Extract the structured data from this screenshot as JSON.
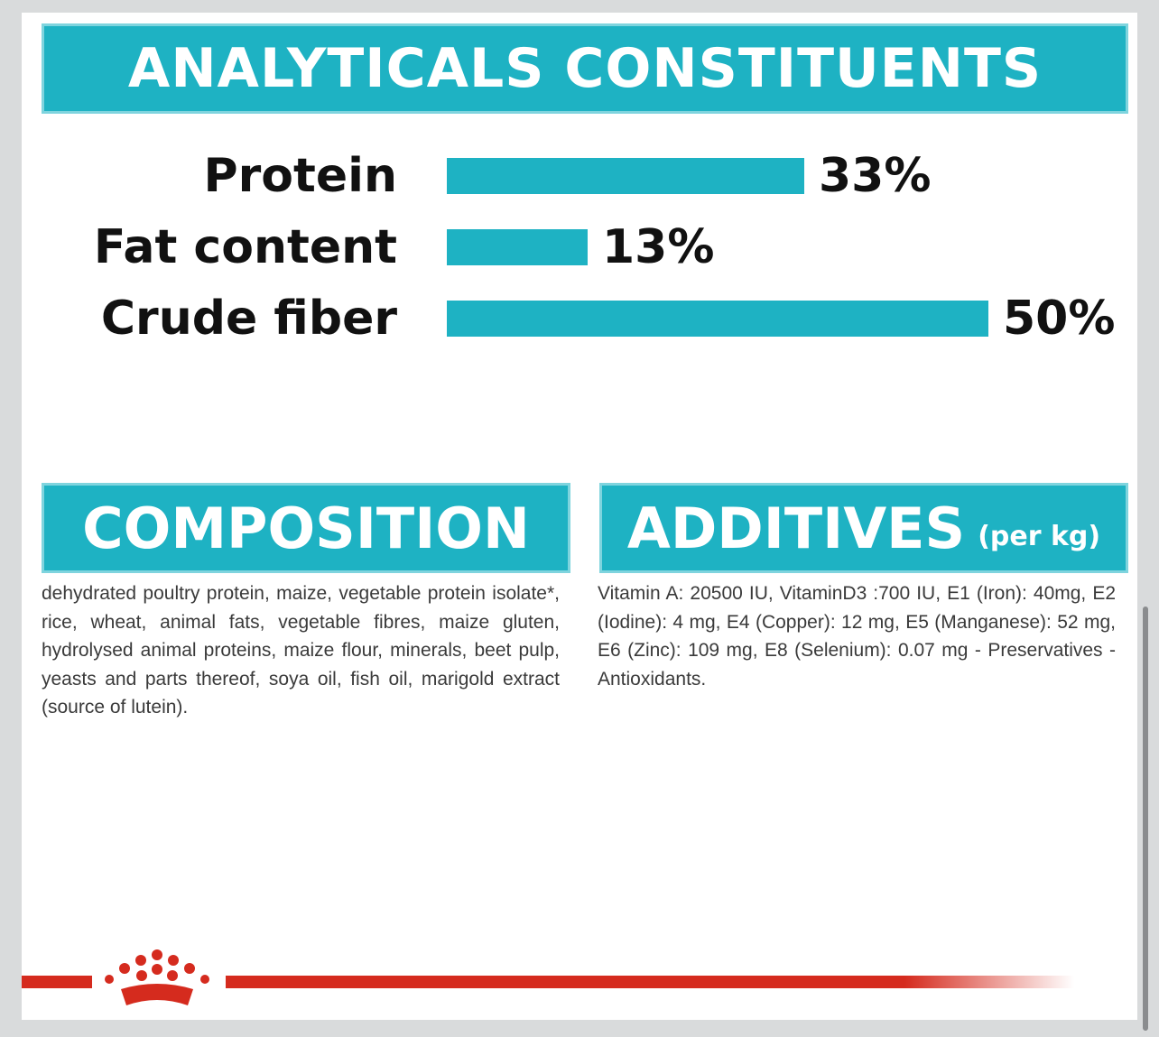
{
  "chart_data": {
    "type": "bar",
    "orientation": "horizontal",
    "title": "ANALYTICALS CONSTITUENTS",
    "categories": [
      "Protein",
      "Fat content",
      "Crude fiber"
    ],
    "values": [
      33,
      13,
      50
    ],
    "value_labels": [
      "33%",
      "13%",
      "50%"
    ],
    "color": "#1eb2c3"
  },
  "composition": {
    "title": "COMPOSITION",
    "text": "dehydrated poultry protein, maize, vegetable protein isolate*, rice, wheat, animal fats, vegetable fibres, maize gluten, hydrolysed animal proteins, maize flour, minerals, beet pulp, yeasts and parts thereof, soya oil, fish oil, marigold extract (source of lutein)."
  },
  "additives": {
    "title": "ADDITIVES",
    "subtitle": "(per kg)",
    "text": "Vitamin A: 20500 IU, VitaminD3 :700 IU, E1 (Iron): 40mg, E2 (Iodine): 4 mg, E4 (Copper): 12 mg, E5 (Manganese): 52 mg, E6 (Zinc): 109 mg, E8 (Selenium): 0.07 mg - Preservatives - Antioxidants."
  }
}
